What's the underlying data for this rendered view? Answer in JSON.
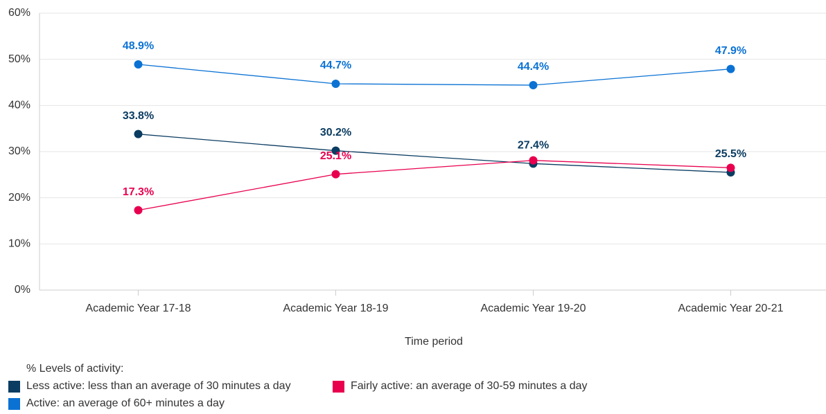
{
  "chart_data": {
    "type": "line",
    "x_label": "Time period",
    "legend_title": "% Levels of activity:",
    "categories": [
      "Academic Year 17-18",
      "Academic Year 18-19",
      "Academic Year 19-20",
      "Academic Year 20-21"
    ],
    "series": [
      {
        "name": "Less active: less than an average of 30 minutes a day",
        "color": "#0b3c61",
        "values": [
          33.8,
          30.2,
          27.4,
          25.5
        ],
        "value_labels": [
          "33.8%",
          "30.2%",
          "27.4%",
          "25.5%"
        ]
      },
      {
        "name": "Fairly active: an average of 30-59 minutes a day",
        "color": "#e8004f",
        "values": [
          17.3,
          25.1,
          28.1,
          26.5
        ],
        "value_labels": [
          "17.3%",
          "25.1%",
          null,
          null
        ]
      },
      {
        "name": "Active: an average of 60+ minutes a day",
        "color": "#0b72d4",
        "values": [
          48.9,
          44.7,
          44.4,
          47.9
        ],
        "value_labels": [
          "48.9%",
          "44.7%",
          "44.4%",
          "47.9%"
        ]
      }
    ],
    "ylim": [
      0,
      60
    ],
    "yticks": [
      {
        "value": 0,
        "label": "0%"
      },
      {
        "value": 10,
        "label": "10%"
      },
      {
        "value": 20,
        "label": "20%"
      },
      {
        "value": 30,
        "label": "30%"
      },
      {
        "value": 40,
        "label": "40%"
      },
      {
        "value": 50,
        "label": "50%"
      },
      {
        "value": 60,
        "label": "60%"
      }
    ],
    "grid": true
  }
}
